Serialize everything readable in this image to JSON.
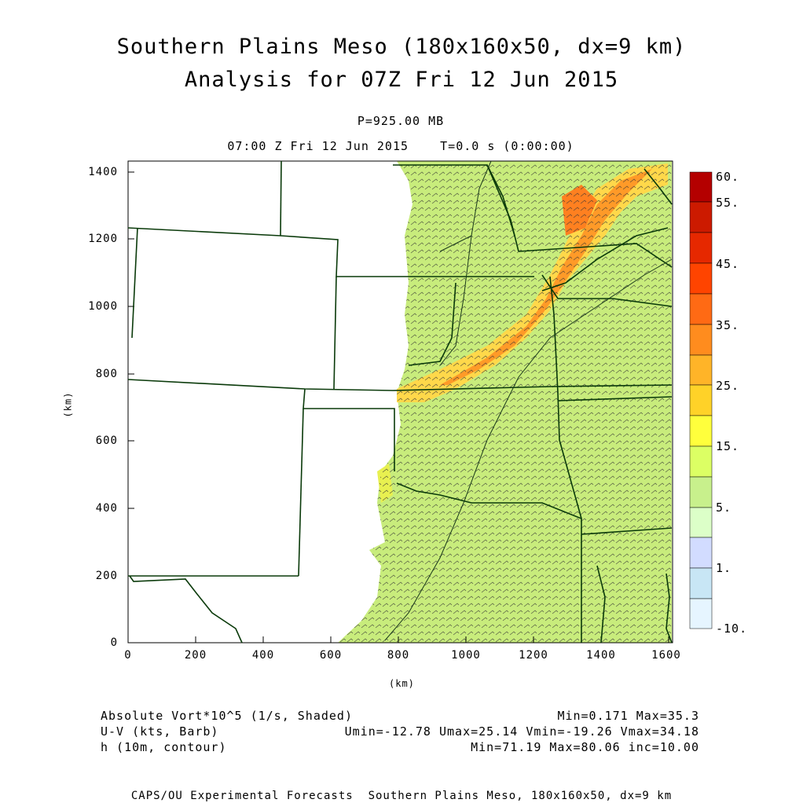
{
  "header": {
    "title_line1": "Southern Plains Meso (180x160x50, dx=9 km)",
    "title_line2": "Analysis for 07Z Fri 12 Jun 2015",
    "pressure_level": "P=925.00 MB",
    "valid_time": "07:00 Z Fri 12 Jun 2015    T=0.0 s (0:00:00)"
  },
  "axes": {
    "x_ticks": [
      "0",
      "200",
      "400",
      "600",
      "800",
      "1000",
      "1200",
      "1400",
      "1600"
    ],
    "y_ticks": [
      "0",
      "200",
      "400",
      "600",
      "800",
      "1000",
      "1200",
      "1400"
    ],
    "x_label": "(km)",
    "y_label": "(km)"
  },
  "legend": {
    "labels": [
      "60.",
      "55.",
      "45.",
      "35.",
      "25.",
      "15.",
      "5.",
      "1.",
      "-10."
    ],
    "colors": [
      "#b40000",
      "#cc1a00",
      "#e62800",
      "#ff4400",
      "#ff6a14",
      "#ff8c1e",
      "#ffb428",
      "#ffd228",
      "#ffff3c",
      "#dcff64",
      "#c8f08c",
      "#dcffc8",
      "#d2dcff",
      "#c8e6f5",
      "#e6f5ff"
    ]
  },
  "footer": {
    "var1_name": "Absolute Vort*10^5 (1/s, Shaded)",
    "var1_stats": "Min=0.171 Max=35.3",
    "var2_name": "U-V (kts, Barb)",
    "var2_stats": "Umin=-12.78 Umax=25.14 Vmin=-19.26 Vmax=34.18",
    "var3_name": "h (10m, contour)",
    "var3_stats": "Min=71.19 Max=80.06 inc=10.00",
    "credit": "CAPS/OU Experimental Forecasts  Southern Plains Meso, 180x160x50, dx=9 km"
  },
  "icons": [
    "wind-barb-icon"
  ]
}
